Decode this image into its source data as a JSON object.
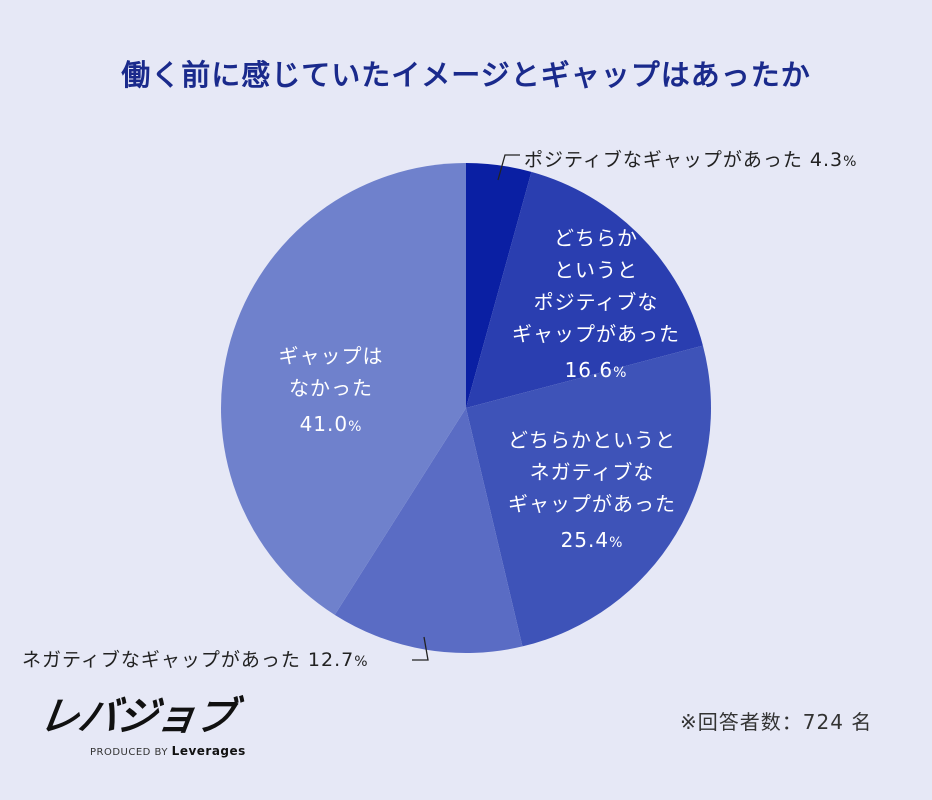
{
  "title": "働く前に感じていたイメージとギャップはあったか",
  "chart_data": {
    "type": "pie",
    "title": "働く前に感じていたイメージとギャップはあったか",
    "categories": [
      "ポジティブなギャップがあった",
      "どちらかというとポジティブなギャップがあった",
      "どちらかというとネガティブなギャップがあった",
      "ネガティブなギャップがあった",
      "ギャップはなかった"
    ],
    "values": [
      4.3,
      16.6,
      25.4,
      12.7,
      41.0
    ],
    "unit": "%",
    "colors": [
      "#0a1fa3",
      "#2a3eb0",
      "#3e53b8",
      "#5a6cc4",
      "#6f81cc"
    ],
    "start_angle": "12 o'clock, clockwise",
    "legend": "none (labels on/next to slices)",
    "respondents": 724
  },
  "labels": {
    "positive": {
      "text": "ポジティブなギャップがあった",
      "value": "4.3",
      "unit": "%"
    },
    "somewhat_positive": {
      "lines": [
        "どちらか",
        "というと",
        "ポジティブな",
        "ギャップがあった"
      ],
      "value": "16.6",
      "unit": "%"
    },
    "somewhat_negative": {
      "lines": [
        "どちらかというと",
        "ネガティブな",
        "ギャップがあった"
      ],
      "value": "25.4",
      "unit": "%"
    },
    "negative": {
      "text": "ネガティブなギャップがあった",
      "value": "12.7",
      "unit": "%"
    },
    "none": {
      "lines": [
        "ギャップは",
        "なかった"
      ],
      "value": "41.0",
      "unit": "%"
    }
  },
  "logo": {
    "mark": "レバジョブ",
    "produced_by": "PRODUCED BY",
    "brand": "Leverages"
  },
  "note": "※回答者数：724 名"
}
